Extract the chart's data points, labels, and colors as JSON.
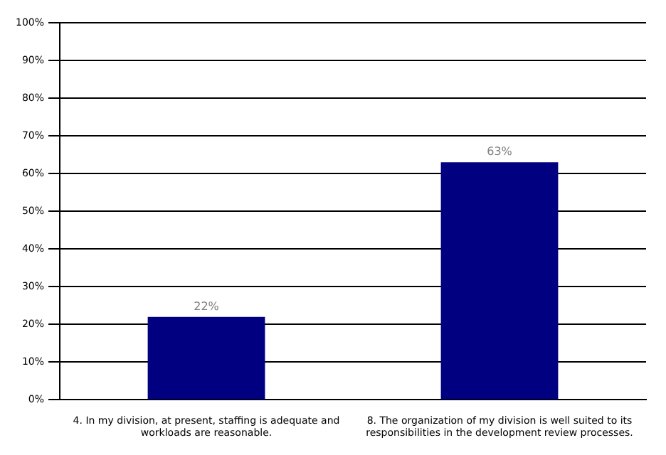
{
  "chart_data": {
    "type": "bar",
    "categories": [
      "4. In my division, at present, staffing is adequate and workloads are reasonable.",
      "8. The organization of my division is well suited to its responsibilities in the development review processes."
    ],
    "values": [
      22,
      63
    ],
    "color": "#000080",
    "value_labels": [
      "22%",
      "63%"
    ],
    "ylim": [
      0,
      100
    ],
    "yticks": [
      {
        "value": 0,
        "label": "0%"
      },
      {
        "value": 10,
        "label": "10%"
      },
      {
        "value": 20,
        "label": "20%"
      },
      {
        "value": 30,
        "label": "30%"
      },
      {
        "value": 40,
        "label": "40%"
      },
      {
        "value": 50,
        "label": "50%"
      },
      {
        "value": 60,
        "label": "60%"
      },
      {
        "value": 70,
        "label": "70%"
      },
      {
        "value": 80,
        "label": "80%"
      },
      {
        "value": 90,
        "label": "90%"
      },
      {
        "value": 100,
        "label": "100%"
      }
    ],
    "grid": "y",
    "legend": false
  }
}
